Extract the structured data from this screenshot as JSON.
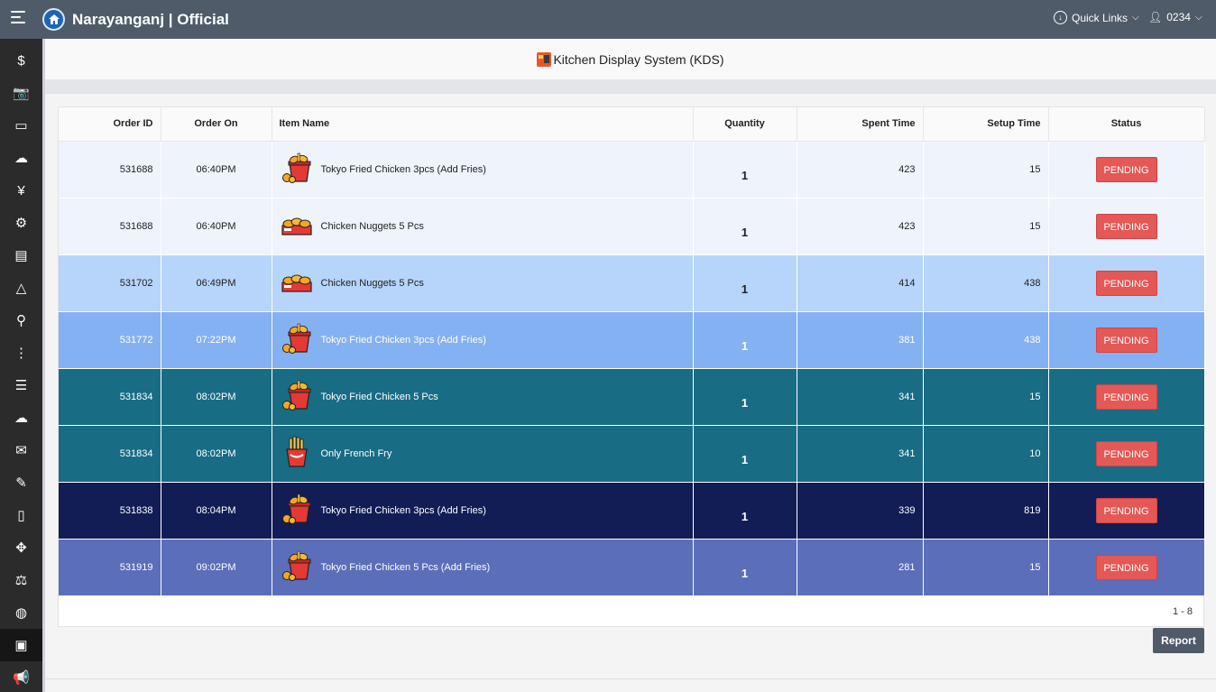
{
  "topbar": {
    "brand": "Narayanganj | Official",
    "quick_links": "Quick Links",
    "user": "0234"
  },
  "sidebar": {
    "items": [
      {
        "icon": "dollar-icon",
        "glyph": "$"
      },
      {
        "icon": "camera-icon",
        "glyph": "📷"
      },
      {
        "icon": "money-icon",
        "glyph": "▭"
      },
      {
        "icon": "cloud-icon",
        "glyph": "☁"
      },
      {
        "icon": "yen-icon",
        "glyph": "¥"
      },
      {
        "icon": "gear-icon",
        "glyph": "⚙"
      },
      {
        "icon": "dashboard-icon",
        "glyph": "▤"
      },
      {
        "icon": "layers-icon",
        "glyph": "△"
      },
      {
        "icon": "accessibility-icon",
        "glyph": "⚲"
      },
      {
        "icon": "more-vertical-icon",
        "glyph": "⋮"
      },
      {
        "icon": "list-icon",
        "glyph": "☰"
      },
      {
        "icon": "cloud-upload-icon",
        "glyph": "☁"
      },
      {
        "icon": "message-icon",
        "glyph": "✉"
      },
      {
        "icon": "edit-doc-icon",
        "glyph": "✎"
      },
      {
        "icon": "document-icon",
        "glyph": "▯"
      },
      {
        "icon": "move-icon",
        "glyph": "✥"
      },
      {
        "icon": "scale-icon",
        "glyph": "⚖"
      },
      {
        "icon": "globe-icon",
        "glyph": "◍"
      },
      {
        "icon": "kds-icon",
        "glyph": "▣",
        "active": true
      },
      {
        "icon": "megaphone-icon",
        "glyph": "📢"
      }
    ]
  },
  "page": {
    "title": "Kitchen Display System (KDS)"
  },
  "table": {
    "headers": {
      "order_id": "Order ID",
      "order_on": "Order On",
      "item_name": "Item Name",
      "quantity": "Quantity",
      "spent_time": "Spent Time",
      "setup_time": "Setup Time",
      "status": "Status"
    },
    "rows": [
      {
        "order_id": "531688",
        "order_on": "06:40PM",
        "item": "Tokyo Fried Chicken 3pcs (Add Fries)",
        "icon": "fried-chicken-bucket-icon",
        "quantity": "1",
        "spent": "423",
        "setup": "15",
        "status": "PENDING",
        "color": "r-c0"
      },
      {
        "order_id": "531688",
        "order_on": "06:40PM",
        "item": "Chicken Nuggets 5 Pcs",
        "icon": "chicken-nuggets-icon",
        "quantity": "1",
        "spent": "423",
        "setup": "15",
        "status": "PENDING",
        "color": "r-c0"
      },
      {
        "order_id": "531702",
        "order_on": "06:49PM",
        "item": "Chicken Nuggets 5 Pcs",
        "icon": "chicken-nuggets-icon",
        "quantity": "1",
        "spent": "414",
        "setup": "438",
        "status": "PENDING",
        "color": "r-c1"
      },
      {
        "order_id": "531772",
        "order_on": "07:22PM",
        "item": "Tokyo Fried Chicken 3pcs (Add Fries)",
        "icon": "fried-chicken-bucket-icon",
        "quantity": "1",
        "spent": "381",
        "setup": "438",
        "status": "PENDING",
        "color": "r-c2"
      },
      {
        "order_id": "531834",
        "order_on": "08:02PM",
        "item": "Tokyo Fried Chicken 5 Pcs",
        "icon": "fried-chicken-bucket-icon",
        "quantity": "1",
        "spent": "341",
        "setup": "15",
        "status": "PENDING",
        "color": "r-c3"
      },
      {
        "order_id": "531834",
        "order_on": "08:02PM",
        "item": "Only French Fry",
        "icon": "french-fries-icon",
        "quantity": "1",
        "spent": "341",
        "setup": "10",
        "status": "PENDING",
        "color": "r-c3"
      },
      {
        "order_id": "531838",
        "order_on": "08:04PM",
        "item": "Tokyo Fried Chicken 3pcs (Add Fries)",
        "icon": "fried-chicken-bucket-icon",
        "quantity": "1",
        "spent": "339",
        "setup": "819",
        "status": "PENDING",
        "color": "r-c4"
      },
      {
        "order_id": "531919",
        "order_on": "09:02PM",
        "item": "Tokyo Fried Chicken 5 Pcs (Add Fries)",
        "icon": "fried-chicken-bucket-icon",
        "quantity": "1",
        "spent": "281",
        "setup": "15",
        "status": "PENDING",
        "color": "r-c5"
      }
    ]
  },
  "pagination": "1 - 8",
  "report_button": "Report"
}
